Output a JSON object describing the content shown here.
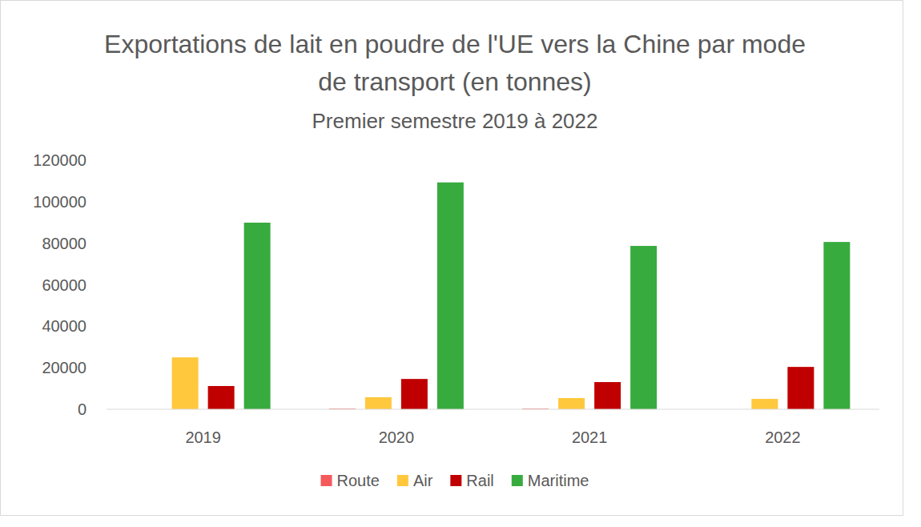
{
  "chart_data": {
    "type": "bar",
    "title": "Exportations de lait en poudre de l'UE vers la Chine par mode de transport (en tonnes)",
    "subtitle": "Premier semestre 2019 à 2022",
    "categories": [
      "2019",
      "2020",
      "2021",
      "2022"
    ],
    "series": [
      {
        "name": "Route",
        "color": "#f4595b",
        "values": [
          0,
          300,
          300,
          0
        ]
      },
      {
        "name": "Air",
        "color": "#ffc83d",
        "values": [
          25000,
          5800,
          5400,
          5000
        ]
      },
      {
        "name": "Rail",
        "color": "#c00000",
        "values": [
          11200,
          14600,
          13100,
          20400
        ]
      },
      {
        "name": "Maritime",
        "color": "#38ab3f",
        "values": [
          89900,
          109300,
          78700,
          80600
        ]
      }
    ],
    "ylim": [
      0,
      120000
    ],
    "yticks": [
      0,
      20000,
      40000,
      60000,
      80000,
      100000,
      120000
    ],
    "grid": false,
    "legend": "bottom"
  }
}
